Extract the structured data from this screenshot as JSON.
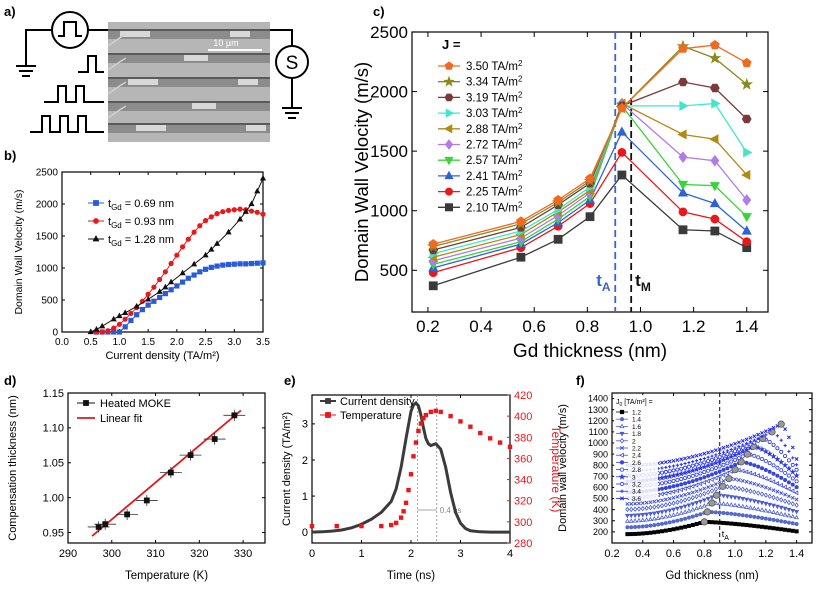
{
  "panels": {
    "a": "a)",
    "b": "b)",
    "c": "c)",
    "d": "d)",
    "e": "e)",
    "f": "f)"
  },
  "panel_a": {
    "scale_bar": "10 µm",
    "detector_symbol": "S"
  },
  "chart_data": [
    {
      "id": "b",
      "type": "line",
      "xlabel": "Current density (TA/m²)",
      "ylabel": "Domain Wall Velocity (m/s)",
      "xlim": [
        0.0,
        3.5
      ],
      "ylim": [
        0,
        2500
      ],
      "xticks": [
        "0.0",
        "0.5",
        "1.0",
        "1.5",
        "2.0",
        "2.5",
        "3.0",
        "3.5"
      ],
      "yticks": [
        "0",
        "500",
        "1000",
        "1500",
        "2000",
        "2500"
      ],
      "series": [
        {
          "name": "t_Gd = 0.69 nm",
          "legend_sub": "Gd",
          "legend_rest": " = 0.69 nm",
          "color": "#2a5bd7",
          "marker": "square",
          "x": [
            0.6,
            0.7,
            0.8,
            0.9,
            1.0,
            1.1,
            1.2,
            1.3,
            1.4,
            1.5,
            1.6,
            1.7,
            1.8,
            1.9,
            2.0,
            2.1,
            2.2,
            2.3,
            2.4,
            2.5,
            2.6,
            2.7,
            2.8,
            2.9,
            3.0,
            3.1,
            3.2,
            3.3,
            3.4,
            3.5
          ],
          "y": [
            0,
            0,
            0,
            0,
            0,
            80,
            180,
            270,
            350,
            420,
            480,
            540,
            600,
            660,
            720,
            780,
            840,
            890,
            940,
            980,
            1010,
            1030,
            1045,
            1055,
            1060,
            1065,
            1065,
            1070,
            1075,
            1080
          ]
        },
        {
          "name": "t_Gd = 0.93 nm",
          "legend_sub": "Gd",
          "legend_rest": " = 0.93 nm",
          "color": "#e8181b",
          "marker": "circle",
          "x": [
            0.6,
            0.7,
            0.8,
            0.9,
            1.0,
            1.1,
            1.2,
            1.3,
            1.4,
            1.5,
            1.6,
            1.7,
            1.8,
            1.9,
            2.0,
            2.1,
            2.2,
            2.3,
            2.4,
            2.5,
            2.6,
            2.7,
            2.8,
            2.9,
            3.0,
            3.1,
            3.2,
            3.3,
            3.4,
            3.5
          ],
          "y": [
            0,
            0,
            20,
            60,
            120,
            200,
            290,
            380,
            480,
            590,
            700,
            820,
            940,
            1070,
            1200,
            1330,
            1450,
            1560,
            1660,
            1740,
            1800,
            1850,
            1880,
            1900,
            1910,
            1920,
            1910,
            1890,
            1870,
            1840
          ]
        },
        {
          "name": "t_Gd = 1.28 nm",
          "legend_sub": "Gd",
          "legend_rest": " = 1.28 nm",
          "color": "#111111",
          "marker": "triangle",
          "x": [
            0.5,
            0.6,
            0.7,
            0.9,
            1.0,
            1.1,
            1.3,
            1.5,
            1.7,
            1.8,
            1.9,
            2.1,
            2.3,
            2.5,
            2.6,
            2.7,
            2.9,
            3.1,
            3.2,
            3.3,
            3.4,
            3.5
          ],
          "y": [
            0,
            40,
            90,
            200,
            250,
            300,
            400,
            510,
            630,
            700,
            780,
            920,
            1060,
            1200,
            1290,
            1380,
            1560,
            1760,
            1880,
            2000,
            2200,
            2400
          ]
        }
      ]
    },
    {
      "id": "c",
      "type": "line",
      "xlabel": "Gd thickness (nm)",
      "ylabel": "Domain Wall Velocity (m/s)",
      "xlim": [
        0.14,
        1.48
      ],
      "ylim": [
        150,
        2500
      ],
      "xticks": [
        "0.2",
        "0.4",
        "0.6",
        "0.8",
        "1.0",
        "1.2",
        "1.4"
      ],
      "yticks": [
        "500",
        "1000",
        "1500",
        "2000",
        "2500"
      ],
      "legend_title": "J =",
      "unit": " TA/m",
      "unit_sup": "2",
      "x": [
        0.22,
        0.55,
        0.69,
        0.81,
        0.93,
        1.16,
        1.28,
        1.4
      ],
      "vlines": [
        {
          "x": 0.905,
          "label": "t",
          "sub": "A",
          "color": "#3b63d9"
        },
        {
          "x": 0.965,
          "label": "t",
          "sub": "M",
          "color": "#111111"
        }
      ],
      "series": [
        {
          "name": "3.50",
          "color": "#f06a22",
          "marker": "pentagon",
          "y": [
            720,
            910,
            1090,
            1270,
            1860,
            2360,
            2390,
            2240
          ]
        },
        {
          "name": "3.34",
          "color": "#8a8a1a",
          "marker": "star",
          "y": [
            700,
            890,
            1070,
            1250,
            1860,
            2380,
            2280,
            2060
          ]
        },
        {
          "name": "3.19",
          "color": "#7b3a3a",
          "marker": "hexagon",
          "y": [
            670,
            860,
            1050,
            1230,
            1880,
            2080,
            2030,
            1770
          ]
        },
        {
          "name": "3.03",
          "color": "#3fe8c9",
          "marker": "triangle-right",
          "y": [
            640,
            830,
            1010,
            1200,
            1880,
            1880,
            1900,
            1490
          ]
        },
        {
          "name": "2.88",
          "color": "#b18a12",
          "marker": "triangle-left",
          "y": [
            610,
            800,
            990,
            1170,
            1900,
            1640,
            1600,
            1300
          ]
        },
        {
          "name": "2.72",
          "color": "#b07ce8",
          "marker": "diamond",
          "y": [
            580,
            770,
            960,
            1150,
            1900,
            1450,
            1420,
            1090
          ]
        },
        {
          "name": "2.57",
          "color": "#39d43a",
          "marker": "triangle-down",
          "y": [
            550,
            740,
            930,
            1120,
            1880,
            1220,
            1210,
            950
          ]
        },
        {
          "name": "2.41",
          "color": "#2e63d8",
          "marker": "triangle",
          "y": [
            520,
            720,
            900,
            1090,
            1660,
            1150,
            1060,
            830
          ]
        },
        {
          "name": "2.25",
          "color": "#e8181b",
          "marker": "circle",
          "y": [
            480,
            690,
            870,
            1060,
            1490,
            990,
            930,
            740
          ]
        },
        {
          "name": "2.10",
          "color": "#3a3a3a",
          "marker": "square",
          "y": [
            370,
            610,
            760,
            950,
            1300,
            840,
            830,
            690
          ]
        }
      ]
    },
    {
      "id": "d",
      "type": "scatter",
      "xlabel": "Temperature (K)",
      "ylabel": "Compensation thickness (nm)",
      "xlim": [
        290,
        335
      ],
      "ylim": [
        0.935,
        1.15
      ],
      "xticks": [
        "290",
        "300",
        "310",
        "320",
        "330"
      ],
      "yticks": [
        "0.95",
        "1.00",
        "1.05",
        "1.10",
        "1.15"
      ],
      "series": [
        {
          "name": "Heated MOKE",
          "color": "#111111",
          "marker": "square",
          "x": [
            297,
            298.5,
            303.5,
            308,
            313.5,
            318,
            323.5,
            328
          ],
          "y": [
            0.958,
            0.962,
            0.976,
            0.996,
            1.036,
            1.061,
            1.084,
            1.118
          ],
          "xerr": [
            2.5,
            2.5,
            2.5,
            2.5,
            2.5,
            2.5,
            2.5,
            2.5
          ],
          "yerr": [
            0.008,
            0.008,
            0.008,
            0.008,
            0.008,
            0.008,
            0.008,
            0.008
          ]
        },
        {
          "name": "Linear fit",
          "color": "#e01b1b",
          "marker": "line",
          "x": [
            295.5,
            329.5
          ],
          "y": [
            0.945,
            1.125
          ]
        }
      ]
    },
    {
      "id": "e",
      "type": "line",
      "xlabel": "Time (ns)",
      "ylabel": "Current density (TA/m²)",
      "ylabel2": "Temperature (K)",
      "xlim": [
        0,
        4
      ],
      "ylim": [
        -0.3,
        3.8
      ],
      "ylim2": [
        280,
        420
      ],
      "xticks": [
        "0",
        "1",
        "2",
        "3",
        "4"
      ],
      "yticks": [
        "0",
        "1",
        "2",
        "3"
      ],
      "yticks2": [
        "280",
        "300",
        "320",
        "340",
        "360",
        "380",
        "400",
        "420"
      ],
      "annotation": "0.4 ns",
      "series": [
        {
          "name": "Current density",
          "color": "#3b3b3b",
          "marker": "square",
          "axis": "left",
          "x": [
            0,
            0.2,
            0.4,
            0.6,
            0.8,
            1.0,
            1.2,
            1.4,
            1.6,
            1.7,
            1.8,
            1.9,
            2.0,
            2.05,
            2.1,
            2.15,
            2.2,
            2.25,
            2.3,
            2.35,
            2.4,
            2.5,
            2.6,
            2.7,
            2.8,
            2.9,
            3.0,
            3.1,
            3.2,
            3.4,
            3.6,
            3.8,
            4.0
          ],
          "y": [
            0,
            0.01,
            0.03,
            0.06,
            0.12,
            0.22,
            0.36,
            0.55,
            0.85,
            1.2,
            1.8,
            2.6,
            3.35,
            3.52,
            3.58,
            3.5,
            3.25,
            2.9,
            2.6,
            2.45,
            2.4,
            2.45,
            2.3,
            1.8,
            1.1,
            0.55,
            0.25,
            0.1,
            0.04,
            0.01,
            0,
            0,
            0
          ]
        },
        {
          "name": "Temperature",
          "color": "#e8181b",
          "marker": "square",
          "axis": "right",
          "x": [
            0,
            0.5,
            1.0,
            1.4,
            1.6,
            1.7,
            1.8,
            1.85,
            1.9,
            1.95,
            2.0,
            2.05,
            2.1,
            2.15,
            2.2,
            2.25,
            2.3,
            2.4,
            2.5,
            2.6,
            2.8,
            3.0,
            3.2,
            3.4,
            3.6,
            3.8,
            4.0
          ],
          "y": [
            296,
            296,
            296,
            296,
            297,
            299,
            304,
            310,
            318,
            330,
            345,
            362,
            375,
            386,
            393,
            398,
            401,
            404,
            405,
            404,
            400,
            395,
            390,
            384,
            379,
            375,
            371
          ]
        }
      ]
    },
    {
      "id": "f",
      "type": "line",
      "xlabel": "Gd thickness (nm)",
      "ylabel": "Domain wall velocity (m/s)",
      "xlim": [
        0.2,
        1.5
      ],
      "ylim": [
        100,
        1450
      ],
      "xticks": [
        "0.2",
        "0.4",
        "0.6",
        "0.8",
        "1.0",
        "1.2",
        "1.4"
      ],
      "yticks": [
        "200",
        "300",
        "400",
        "500",
        "600",
        "700",
        "800",
        "900",
        "1000",
        "1100",
        "1200",
        "1300",
        "1400"
      ],
      "legend_title": "J",
      "legend_sub": "0",
      "legend_unit": " [TA/m²] =",
      "vline": {
        "x": 0.9,
        "label": "t",
        "sub": "A"
      },
      "J": [
        "1.2",
        "1.4",
        "1.6",
        "1.8",
        "2",
        "2.2",
        "2.4",
        "2.6",
        "2.8",
        "3",
        "3.2",
        "3.4",
        "3.6"
      ],
      "base_max": [
        290,
        380,
        460,
        530,
        610,
        680,
        760,
        830,
        900,
        970,
        1040,
        1100,
        1170
      ],
      "peak_x": [
        0.8,
        0.82,
        0.85,
        0.88,
        0.92,
        0.96,
        1.0,
        1.04,
        1.08,
        1.12,
        1.18,
        1.24,
        1.3
      ]
    }
  ]
}
